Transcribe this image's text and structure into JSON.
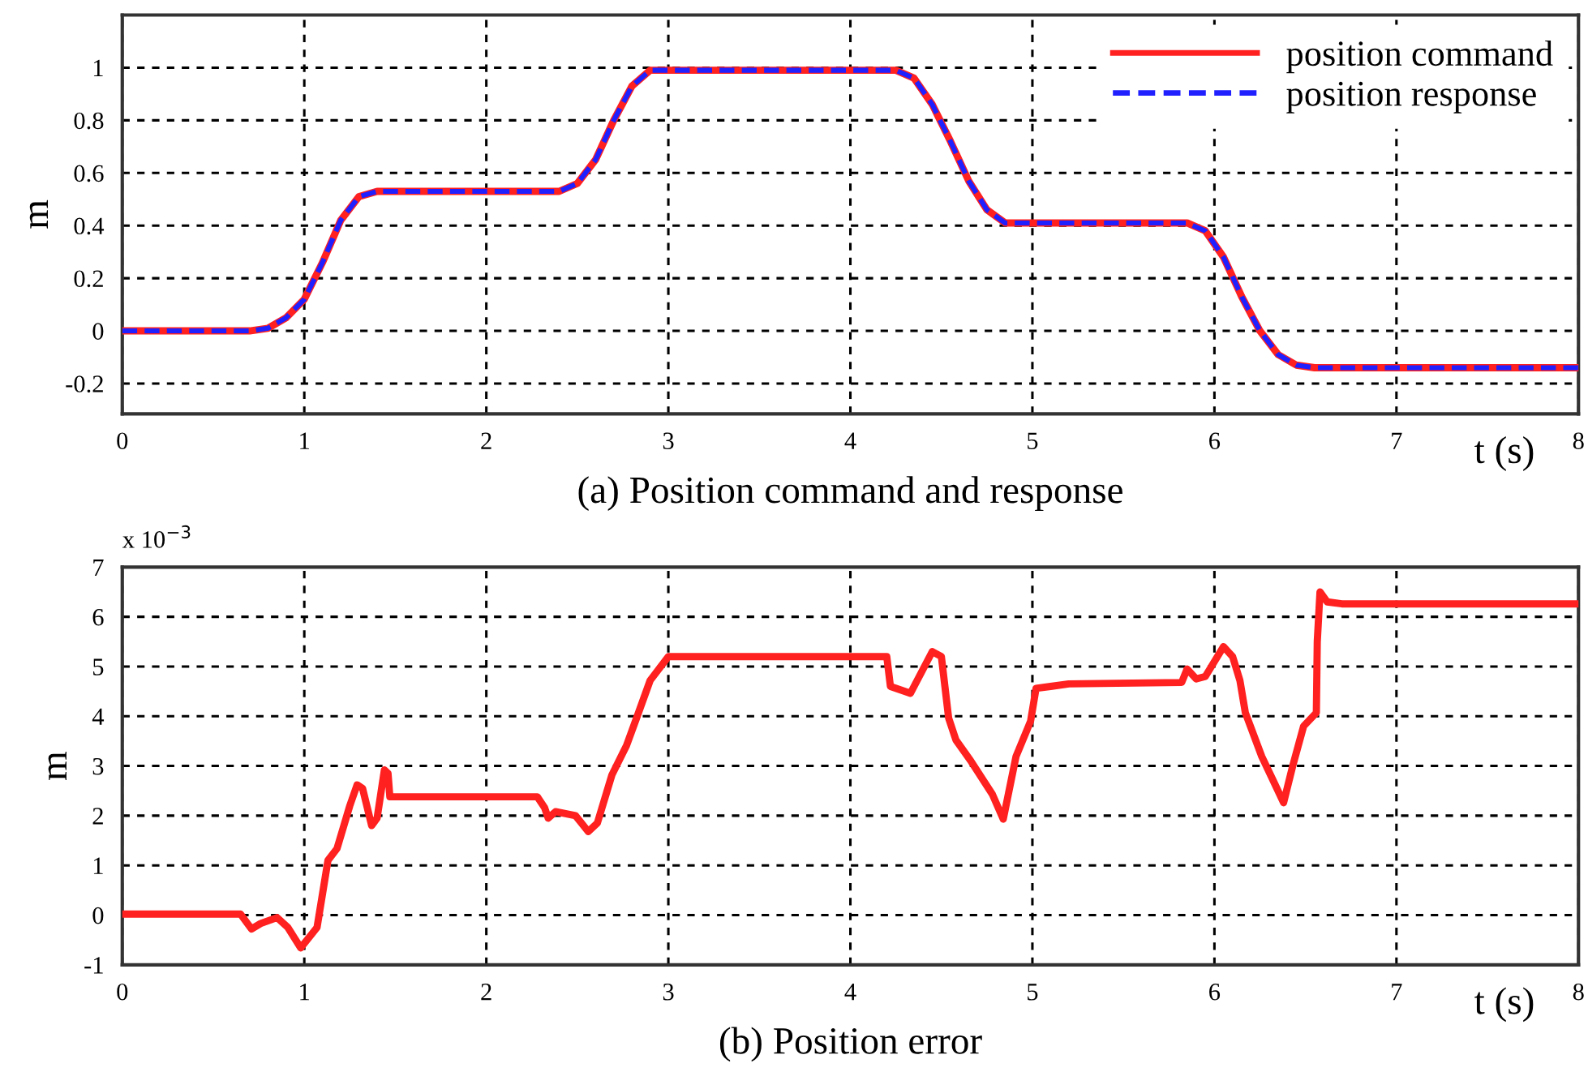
{
  "chart_data": [
    {
      "type": "line",
      "title": "(a) Position command and response",
      "xlabel": "t (s)",
      "ylabel": "m",
      "xlim": [
        0,
        8
      ],
      "ylim": [
        -0.315,
        1.2
      ],
      "xticks": [
        0,
        1,
        2,
        3,
        4,
        5,
        6,
        7,
        8
      ],
      "yticks": [
        -0.2,
        0,
        0.2,
        0.4,
        0.6,
        0.8,
        1
      ],
      "grid": true,
      "legend": "top right",
      "series": [
        {
          "name": "position command",
          "color": "#ff2020",
          "line_style": "solid",
          "x": [
            0,
            0.7,
            0.8,
            0.9,
            1.0,
            1.1,
            1.2,
            1.3,
            1.4,
            2.4,
            2.5,
            2.6,
            2.7,
            2.8,
            2.9,
            4.25,
            4.35,
            4.45,
            4.55,
            4.65,
            4.75,
            4.85,
            5.85,
            5.95,
            6.05,
            6.15,
            6.25,
            6.35,
            6.45,
            6.55,
            8
          ],
          "values": [
            0,
            0,
            0.01,
            0.05,
            0.12,
            0.26,
            0.42,
            0.51,
            0.53,
            0.53,
            0.56,
            0.65,
            0.8,
            0.93,
            0.99,
            0.99,
            0.96,
            0.86,
            0.72,
            0.57,
            0.46,
            0.41,
            0.41,
            0.38,
            0.28,
            0.13,
            0.0,
            -0.09,
            -0.13,
            -0.14,
            -0.14
          ]
        },
        {
          "name": "position response",
          "color": "#2020ff",
          "line_style": "dashed",
          "x": [
            0,
            0.7,
            0.8,
            0.9,
            1.0,
            1.1,
            1.2,
            1.3,
            1.4,
            2.4,
            2.5,
            2.6,
            2.7,
            2.8,
            2.9,
            4.25,
            4.35,
            4.45,
            4.55,
            4.65,
            4.75,
            4.85,
            5.85,
            5.95,
            6.05,
            6.15,
            6.25,
            6.35,
            6.45,
            6.55,
            8
          ],
          "values": [
            0,
            0,
            0.01,
            0.05,
            0.12,
            0.26,
            0.42,
            0.51,
            0.53,
            0.53,
            0.56,
            0.65,
            0.8,
            0.93,
            0.99,
            0.99,
            0.96,
            0.86,
            0.72,
            0.57,
            0.46,
            0.41,
            0.41,
            0.38,
            0.28,
            0.13,
            0.0,
            -0.09,
            -0.13,
            -0.14,
            -0.14
          ]
        }
      ]
    },
    {
      "type": "line",
      "title": "(b) Position error",
      "xlabel": "t (s)",
      "ylabel": "m",
      "annotations": [
        "x 10$^{−3}$"
      ],
      "xlim": [
        0,
        8
      ],
      "ylim": [
        -1,
        7
      ],
      "xticks": [
        0,
        1,
        2,
        3,
        4,
        5,
        6,
        7,
        8
      ],
      "yticks": [
        -1,
        0,
        1,
        2,
        3,
        4,
        5,
        6,
        7
      ],
      "grid": true,
      "series": [
        {
          "color": "#ff2020",
          "line_style": "solid",
          "x": [
            0,
            0.65,
            0.71,
            0.76,
            0.85,
            0.91,
            0.98,
            1.07,
            1.13,
            1.18,
            1.25,
            1.29,
            1.32,
            1.37,
            1.4,
            1.44,
            1.46,
            1.47,
            2.28,
            2.32,
            2.34,
            2.38,
            2.49,
            2.56,
            2.61,
            2.69,
            2.77,
            2.83,
            2.9,
            3.0,
            4.2,
            4.22,
            4.33,
            4.45,
            4.5,
            4.54,
            4.58,
            4.66,
            4.78,
            4.84,
            4.91,
            4.99,
            5.02,
            5.1,
            5.2,
            5.82,
            5.85,
            5.9,
            5.95,
            6.05,
            6.1,
            6.14,
            6.17,
            6.26,
            6.33,
            6.38,
            6.43,
            6.49,
            6.56,
            6.565,
            6.58,
            6.62,
            6.7,
            8
          ],
          "values": [
            0.02,
            0.02,
            -0.28,
            -0.17,
            -0.05,
            -0.25,
            -0.66,
            -0.25,
            1.1,
            1.34,
            2.2,
            2.62,
            2.55,
            1.8,
            1.95,
            2.92,
            2.85,
            2.38,
            2.38,
            2.16,
            1.95,
            2.08,
            2.0,
            1.68,
            1.85,
            2.82,
            3.41,
            4.01,
            4.72,
            5.2,
            5.2,
            4.6,
            4.46,
            5.3,
            5.2,
            3.96,
            3.52,
            3.11,
            2.43,
            1.93,
            3.19,
            3.9,
            4.56,
            4.6,
            4.65,
            4.68,
            4.95,
            4.75,
            4.8,
            5.4,
            5.2,
            4.72,
            4.07,
            3.19,
            2.65,
            2.26,
            3.0,
            3.8,
            4.07,
            5.5,
            6.5,
            6.3,
            6.26,
            6.26
          ]
        }
      ]
    }
  ]
}
